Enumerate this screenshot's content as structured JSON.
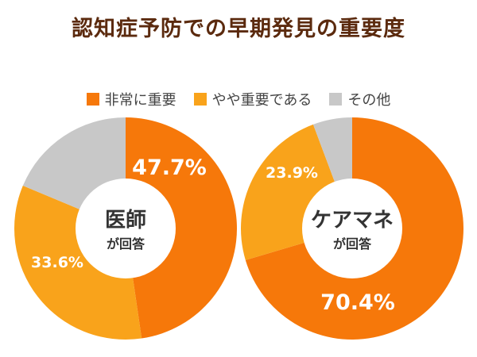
{
  "title": "認知症予防での早期発見の重要度",
  "legend": [
    {
      "label": "非常に重要",
      "color": "#f6780a"
    },
    {
      "label": "やや重要である",
      "color": "#f9a31b"
    },
    {
      "label": "その他",
      "color": "#c8c8c8"
    }
  ],
  "chart_data": [
    {
      "type": "pie",
      "center_title": "医師",
      "center_sub": "が回答",
      "categories": [
        "非常に重要",
        "やや重要である",
        "その他"
      ],
      "values": [
        47.7,
        33.6,
        18.7
      ],
      "value_labels": [
        "47.7%",
        "33.6%",
        ""
      ],
      "colors": [
        "#f6780a",
        "#f9a31b",
        "#c8c8c8"
      ]
    },
    {
      "type": "pie",
      "center_title": "ケアマネ",
      "center_sub": "が回答",
      "categories": [
        "非常に重要",
        "やや重要である",
        "その他"
      ],
      "values": [
        70.4,
        23.9,
        5.7
      ],
      "value_labels": [
        "70.4%",
        "23.9%",
        ""
      ],
      "colors": [
        "#f6780a",
        "#f9a31b",
        "#c8c8c8"
      ]
    }
  ]
}
